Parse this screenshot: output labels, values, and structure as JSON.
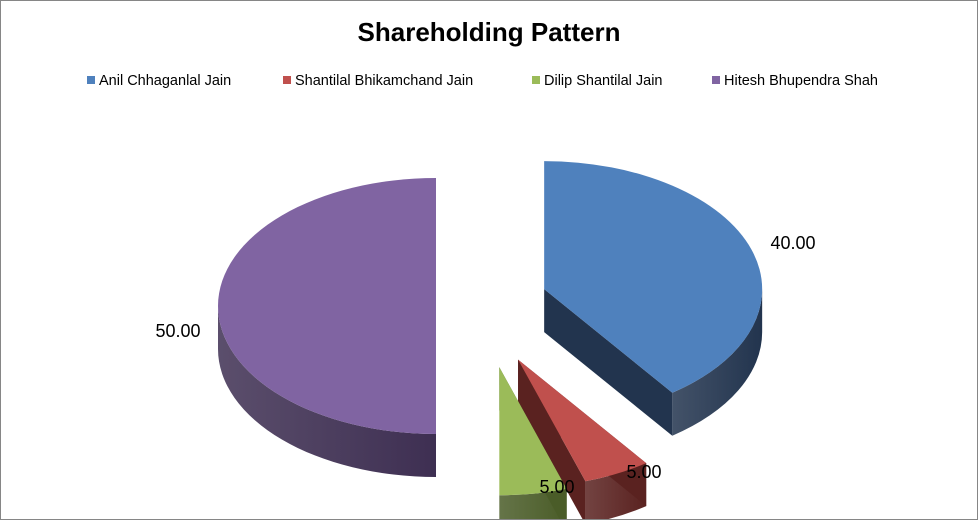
{
  "chart_data": {
    "type": "pie",
    "title": "Shareholding Pattern",
    "legend_position": "top",
    "exploded": true,
    "three_d": true,
    "slices": [
      {
        "label": "Anil Chhaganlal Jain",
        "value": 40.0,
        "value_label": "40.00",
        "color": "#4F81BD",
        "side_color": "#22344E"
      },
      {
        "label": "Shantilal Bhikamchand Jain",
        "value": 5.0,
        "value_label": "5.00",
        "color": "#C0504D",
        "side_color": "#5A2220"
      },
      {
        "label": "Dilip Shantilal Jain",
        "value": 5.0,
        "value_label": "5.00",
        "color": "#9BBB59",
        "side_color": "#4A5C28"
      },
      {
        "label": "Hitesh Bhupendra Shah",
        "value": 50.0,
        "value_label": "50.00",
        "color": "#8064A2",
        "side_color": "#3E2F52"
      }
    ]
  }
}
